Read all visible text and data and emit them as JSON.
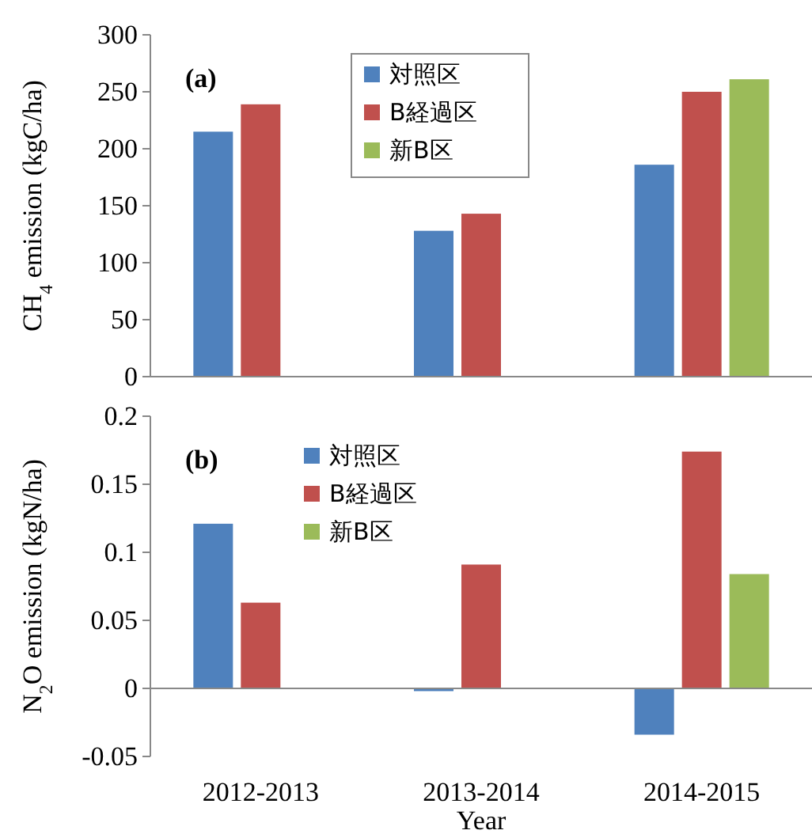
{
  "chart_data": [
    {
      "type": "bar",
      "ylabel": "CH$_{4}$ emission (kgC/ha)",
      "annotations": [
        "(a)"
      ],
      "categories": [
        null,
        null,
        null
      ],
      "tick_labels": "y",
      "legend": "top",
      "ylim": [
        0,
        300
      ],
      "yticks": [
        0,
        50,
        100,
        150,
        200,
        250,
        300
      ],
      "series": [
        {
          "name": "対照区",
          "color": "#4f81bd",
          "values": [
            215,
            128,
            186
          ]
        },
        {
          "name": "B経過区",
          "color": "#c0504d",
          "values": [
            239,
            143,
            250
          ]
        },
        {
          "name": "新B区",
          "color": "#9bbb59",
          "values": [
            null,
            null,
            261
          ]
        }
      ]
    },
    {
      "type": "bar",
      "ylabel": "N$_{2}$O emission (kgN/ha)",
      "xlabel": "Year",
      "annotations": [
        "(b)"
      ],
      "categories": [
        "2012-2013",
        "2013-2014",
        "2014-2015"
      ],
      "legend": "top",
      "ylim": [
        -0.05,
        0.2
      ],
      "yticks": [
        -0.05,
        0,
        0.05,
        0.1,
        0.15,
        0.2
      ],
      "series": [
        {
          "name": "対照区",
          "color": "#4f81bd",
          "values": [
            0.121,
            -0.002,
            -0.034
          ]
        },
        {
          "name": "B経過区",
          "color": "#c0504d",
          "values": [
            0.063,
            0.091,
            0.174
          ]
        },
        {
          "name": "新B区",
          "color": "#9bbb59",
          "values": [
            null,
            null,
            0.084
          ]
        }
      ]
    }
  ]
}
